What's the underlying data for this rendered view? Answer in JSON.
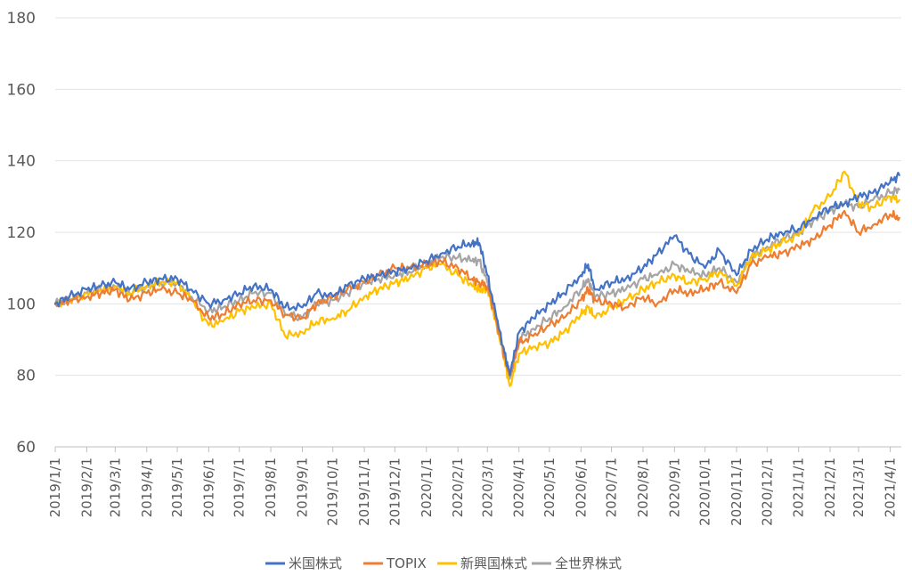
{
  "chart_data": {
    "type": "line",
    "title": "",
    "xlabel": "",
    "ylabel": "",
    "ylim": [
      60,
      180
    ],
    "yticks": [
      60,
      80,
      100,
      120,
      140,
      160,
      180
    ],
    "grid": true,
    "legend_position": "bottom",
    "x_tick_labels": [
      "2019/1/1",
      "2019/2/1",
      "2019/3/1",
      "2019/4/1",
      "2019/5/1",
      "2019/6/1",
      "2019/7/1",
      "2019/8/1",
      "2019/9/1",
      "2019/10/1",
      "2019/11/1",
      "2019/12/1",
      "2020/1/1",
      "2020/2/1",
      "2020/3/1",
      "2020/4/1",
      "2020/5/1",
      "2020/6/1",
      "2020/7/1",
      "2020/8/1",
      "2020/9/1",
      "2020/10/1",
      "2020/11/1",
      "2020/12/1",
      "2021/1/1",
      "2021/2/1",
      "2021/3/1",
      "2021/4/1"
    ],
    "x": [
      "2019/1/1",
      "2019/1/15",
      "2019/2/1",
      "2019/2/15",
      "2019/3/1",
      "2019/3/15",
      "2019/4/1",
      "2019/4/15",
      "2019/5/1",
      "2019/5/15",
      "2019/6/1",
      "2019/6/15",
      "2019/7/1",
      "2019/7/15",
      "2019/8/1",
      "2019/8/15",
      "2019/9/1",
      "2019/9/15",
      "2019/10/1",
      "2019/10/15",
      "2019/11/1",
      "2019/11/15",
      "2019/12/1",
      "2019/12/15",
      "2020/1/1",
      "2020/1/15",
      "2020/2/1",
      "2020/2/15",
      "2020/2/22",
      "2020/3/1",
      "2020/3/10",
      "2020/3/18",
      "2020/3/23",
      "2020/4/1",
      "2020/4/15",
      "2020/5/1",
      "2020/5/15",
      "2020/6/1",
      "2020/6/8",
      "2020/6/15",
      "2020/7/1",
      "2020/7/15",
      "2020/8/1",
      "2020/8/15",
      "2020/9/1",
      "2020/9/15",
      "2020/10/1",
      "2020/10/15",
      "2020/11/1",
      "2020/11/15",
      "2020/12/1",
      "2020/12/15",
      "2021/1/1",
      "2021/1/15",
      "2021/2/1",
      "2021/2/15",
      "2021/3/1",
      "2021/3/15",
      "2021/4/1",
      "2021/4/10"
    ],
    "series": [
      {
        "name": "米国株式",
        "color": "#4472c4",
        "values": [
          100,
          102,
          104,
          105,
          106,
          104,
          106,
          107,
          107,
          104,
          100,
          101,
          103,
          105,
          104,
          99,
          99,
          103,
          102,
          105,
          107,
          108,
          109,
          110,
          112,
          114,
          116,
          117,
          117,
          108,
          96,
          86,
          80,
          92,
          96,
          100,
          103,
          108,
          111,
          104,
          106,
          107,
          110,
          114,
          119,
          114,
          110,
          115,
          108,
          115,
          118,
          120,
          121,
          124,
          127,
          128,
          130,
          131,
          134,
          136
        ]
      },
      {
        "name": "TOPIX",
        "color": "#ed7d31",
        "values": [
          100,
          101,
          102,
          103,
          104,
          101,
          103,
          104,
          103,
          101,
          96,
          97,
          100,
          101,
          101,
          97,
          96,
          100,
          102,
          104,
          106,
          108,
          110,
          110,
          111,
          112,
          110,
          107,
          106,
          105,
          95,
          85,
          80,
          89,
          91,
          94,
          96,
          101,
          104,
          101,
          100,
          99,
          102,
          100,
          104,
          103,
          104,
          106,
          103,
          111,
          113,
          114,
          116,
          118,
          122,
          126,
          120,
          122,
          125,
          124
        ]
      },
      {
        "name": "新興国株式",
        "color": "#ffc000",
        "values": [
          100,
          101,
          103,
          104,
          105,
          103,
          105,
          106,
          106,
          101,
          94,
          95,
          98,
          99,
          100,
          91,
          92,
          95,
          96,
          98,
          102,
          104,
          106,
          107,
          110,
          111,
          108,
          105,
          104,
          104,
          94,
          84,
          77,
          86,
          88,
          89,
          92,
          97,
          99,
          96,
          99,
          101,
          104,
          106,
          108,
          106,
          107,
          109,
          105,
          113,
          115,
          117,
          119,
          126,
          130,
          137,
          128,
          127,
          130,
          129
        ]
      },
      {
        "name": "全世界株式",
        "color": "#a5a5a5",
        "values": [
          100,
          101,
          103,
          104,
          105,
          103,
          105,
          106,
          106,
          102,
          98,
          99,
          101,
          103,
          103,
          97,
          96,
          100,
          101,
          103,
          106,
          107,
          108,
          109,
          111,
          113,
          113,
          112,
          112,
          106,
          96,
          85,
          79,
          90,
          93,
          96,
          99,
          104,
          107,
          102,
          103,
          104,
          107,
          108,
          111,
          109,
          108,
          110,
          106,
          113,
          116,
          118,
          120,
          123,
          126,
          128,
          127,
          129,
          131,
          132
        ]
      }
    ]
  }
}
